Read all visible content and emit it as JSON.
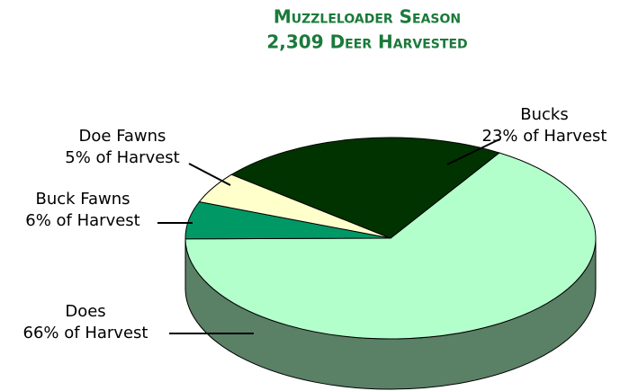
{
  "chart_data": {
    "type": "pie",
    "title": "Muzzleloader Season",
    "subtitle": "2,309 Deer Harvested",
    "categories": [
      "Does",
      "Buck Fawns",
      "Doe Fawns",
      "Bucks"
    ],
    "values": [
      66,
      6,
      5,
      23
    ],
    "value_labels": [
      "66% of Harvest",
      "6% of Harvest",
      "5% of Harvest",
      "23% of Harvest"
    ],
    "colors": [
      "#b3ffcc",
      "#009966",
      "#ffffcc",
      "#003300"
    ]
  }
}
